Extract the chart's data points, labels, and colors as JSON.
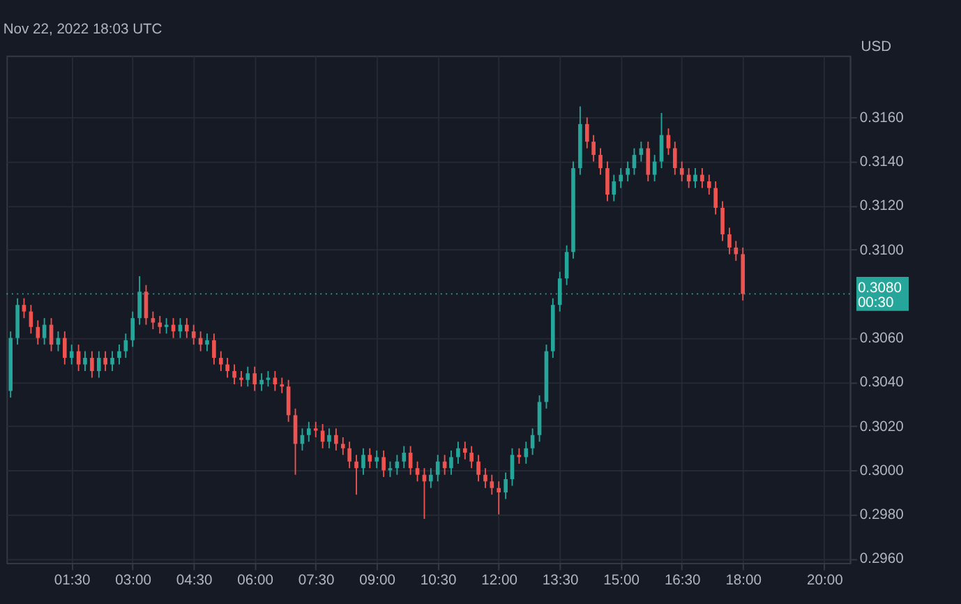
{
  "chart_data": {
    "type": "candlestick",
    "title": "Nov 22, 2022 18:03 UTC",
    "ylabel": "USD",
    "annotations": [
      "00:30"
    ],
    "colors": [
      "#26a69a",
      "#26a69a",
      "#ef5350",
      "#ef5350",
      "#ef5350",
      "#26a69a",
      "#ef5350",
      "#26a69a",
      "#ef5350",
      "#26a69a",
      "#ef5350",
      "#26a69a",
      "#ef5350",
      "#26a69a",
      "#ef5350",
      "#26a69a",
      "#26a69a",
      "#26a69a",
      "#26a69a",
      "#26a69a",
      "#ef5350",
      "#ef5350",
      "#ef5350",
      "#26a69a",
      "#ef5350",
      "#26a69a",
      "#ef5350",
      "#ef5350",
      "#ef5350",
      "#26a69a",
      "#ef5350",
      "#ef5350",
      "#ef5350",
      "#ef5350",
      "#ef5350",
      "#26a69a",
      "#ef5350",
      "#26a69a",
      "#26a69a",
      "#ef5350",
      "#ef5350",
      "#ef5350",
      "#ef5350",
      "#26a69a",
      "#26a69a",
      "#ef5350",
      "#ef5350",
      "#26a69a",
      "#ef5350",
      "#ef5350",
      "#ef5350",
      "#ef5350",
      "#26a69a",
      "#ef5350",
      "#26a69a",
      "#ef5350",
      "#26a69a",
      "#26a69a",
      "#26a69a",
      "#ef5350",
      "#ef5350",
      "#ef5350",
      "#26a69a",
      "#26a69a",
      "#ef5350",
      "#26a69a",
      "#26a69a",
      "#ef5350",
      "#ef5350",
      "#ef5350",
      "#ef5350",
      "#ef5350",
      "#ef5350",
      "#26a69a",
      "#26a69a",
      "#ef5350",
      "#26a69a",
      "#26a69a",
      "#26a69a",
      "#26a69a",
      "#26a69a",
      "#26a69a",
      "#26a69a",
      "#26a69a",
      "#26a69a",
      "#ef5350",
      "#ef5350",
      "#ef5350",
      "#ef5350",
      "#26a69a",
      "#26a69a",
      "#26a69a",
      "#26a69a",
      "#26a69a",
      "#ef5350",
      "#26a69a",
      "#26a69a",
      "#ef5350",
      "#ef5350",
      "#ef5350",
      "#ef5350",
      "#26a69a",
      "#ef5350",
      "#ef5350",
      "#ef5350",
      "#ef5350",
      "#ef5350",
      "#ef5350",
      "#ef5350"
    ],
    "x": [
      0,
      0.17,
      0.33,
      0.5,
      0.67,
      0.83,
      1,
      1.17,
      1.33,
      1.5,
      1.67,
      1.83,
      2,
      2.17,
      2.33,
      2.5,
      2.67,
      2.83,
      3,
      3.17,
      3.33,
      3.5,
      3.67,
      3.83,
      4,
      4.17,
      4.33,
      4.5,
      4.67,
      4.83,
      5,
      5.17,
      5.33,
      5.5,
      5.67,
      5.83,
      6,
      6.17,
      6.33,
      6.5,
      6.67,
      6.83,
      7,
      7.17,
      7.33,
      7.5,
      7.67,
      7.83,
      8,
      8.17,
      8.33,
      8.5,
      8.67,
      8.83,
      9,
      9.17,
      9.33,
      9.5,
      9.67,
      9.83,
      10,
      10.17,
      10.33,
      10.5,
      10.67,
      10.83,
      11,
      11.17,
      11.33,
      11.5,
      11.67,
      11.83,
      12,
      12.17,
      12.33,
      12.5,
      12.67,
      12.83,
      13,
      13.17,
      13.33,
      13.5,
      13.67,
      13.83,
      14,
      14.17,
      14.33,
      14.5,
      14.67,
      14.83,
      15,
      15.17,
      15.33,
      15.5,
      15.67,
      15.83,
      16,
      16.17,
      16.33,
      16.5,
      16.67,
      16.83,
      17,
      17.17,
      17.33,
      17.5,
      17.67,
      17.83,
      18
    ],
    "ohlc": [
      [
        0.3036,
        0.3063,
        0.3033,
        0.306
      ],
      [
        0.306,
        0.3078,
        0.3057,
        0.3075
      ],
      [
        0.3075,
        0.3078,
        0.3069,
        0.3072
      ],
      [
        0.3072,
        0.3075,
        0.3062,
        0.3065
      ],
      [
        0.3065,
        0.3068,
        0.3057,
        0.306
      ],
      [
        0.306,
        0.3069,
        0.3057,
        0.3066
      ],
      [
        0.3066,
        0.3069,
        0.3054,
        0.3057
      ],
      [
        0.3057,
        0.3063,
        0.3054,
        0.306
      ],
      [
        0.306,
        0.3063,
        0.3048,
        0.3051
      ],
      [
        0.3051,
        0.3057,
        0.3048,
        0.3054
      ],
      [
        0.3054,
        0.3057,
        0.3045,
        0.3048
      ],
      [
        0.3048,
        0.3054,
        0.3045,
        0.3051
      ],
      [
        0.3051,
        0.3054,
        0.3042,
        0.3045
      ],
      [
        0.3045,
        0.3054,
        0.3042,
        0.3051
      ],
      [
        0.3051,
        0.3054,
        0.3045,
        0.3048
      ],
      [
        0.3048,
        0.3054,
        0.3045,
        0.3051
      ],
      [
        0.3051,
        0.3057,
        0.3048,
        0.3054
      ],
      [
        0.3054,
        0.3062,
        0.3051,
        0.3059
      ],
      [
        0.3059,
        0.3072,
        0.3056,
        0.3069
      ],
      [
        0.3069,
        0.3088,
        0.3066,
        0.3081
      ],
      [
        0.3081,
        0.3084,
        0.3066,
        0.3069
      ],
      [
        0.3069,
        0.3072,
        0.3064,
        0.3067
      ],
      [
        0.3067,
        0.307,
        0.3062,
        0.3065
      ],
      [
        0.3065,
        0.3069,
        0.3062,
        0.3066
      ],
      [
        0.3066,
        0.3069,
        0.306,
        0.3063
      ],
      [
        0.3063,
        0.3069,
        0.306,
        0.3066
      ],
      [
        0.3066,
        0.3069,
        0.306,
        0.3063
      ],
      [
        0.3063,
        0.3066,
        0.3057,
        0.306
      ],
      [
        0.306,
        0.3063,
        0.3054,
        0.3057
      ],
      [
        0.3057,
        0.3062,
        0.3054,
        0.3059
      ],
      [
        0.3059,
        0.3062,
        0.3048,
        0.3051
      ],
      [
        0.3051,
        0.3054,
        0.3045,
        0.3048
      ],
      [
        0.3048,
        0.3051,
        0.3042,
        0.3045
      ],
      [
        0.3045,
        0.3048,
        0.3039,
        0.3042
      ],
      [
        0.3042,
        0.3045,
        0.3038,
        0.3041
      ],
      [
        0.3041,
        0.3047,
        0.3038,
        0.3044
      ],
      [
        0.3044,
        0.3047,
        0.3036,
        0.3039
      ],
      [
        0.3039,
        0.3044,
        0.3036,
        0.3041
      ],
      [
        0.3041,
        0.3045,
        0.3038,
        0.3042
      ],
      [
        0.3042,
        0.3045,
        0.3036,
        0.3039
      ],
      [
        0.3039,
        0.3042,
        0.3035,
        0.3038
      ],
      [
        0.3038,
        0.3041,
        0.3022,
        0.3025
      ],
      [
        0.3025,
        0.3028,
        0.2998,
        0.3012
      ],
      [
        0.3012,
        0.3019,
        0.3009,
        0.3016
      ],
      [
        0.3016,
        0.3022,
        0.3013,
        0.3019
      ],
      [
        0.3019,
        0.3022,
        0.3015,
        0.3018
      ],
      [
        0.3018,
        0.3021,
        0.301,
        0.3013
      ],
      [
        0.3013,
        0.3019,
        0.301,
        0.3016
      ],
      [
        0.3016,
        0.3019,
        0.3009,
        0.3012
      ],
      [
        0.3012,
        0.3015,
        0.3007,
        0.301
      ],
      [
        0.301,
        0.3013,
        0.3001,
        0.3004
      ],
      [
        0.3004,
        0.3007,
        0.2989,
        0.3001
      ],
      [
        0.3001,
        0.301,
        0.2998,
        0.3007
      ],
      [
        0.3007,
        0.301,
        0.3001,
        0.3004
      ],
      [
        0.3004,
        0.3009,
        0.3001,
        0.3006
      ],
      [
        0.3006,
        0.3009,
        0.2997,
        0.3
      ],
      [
        0.3,
        0.3004,
        0.2997,
        0.3001
      ],
      [
        0.3001,
        0.3007,
        0.2998,
        0.3004
      ],
      [
        0.3004,
        0.3011,
        0.3001,
        0.3008
      ],
      [
        0.3008,
        0.3011,
        0.2998,
        0.3001
      ],
      [
        0.3001,
        0.3004,
        0.2995,
        0.2998
      ],
      [
        0.2998,
        0.3001,
        0.2978,
        0.2995
      ],
      [
        0.2995,
        0.3001,
        0.2992,
        0.2998
      ],
      [
        0.2998,
        0.3007,
        0.2995,
        0.3004
      ],
      [
        0.3004,
        0.3007,
        0.2998,
        0.3001
      ],
      [
        0.3001,
        0.3009,
        0.2998,
        0.3006
      ],
      [
        0.3006,
        0.3013,
        0.3003,
        0.301
      ],
      [
        0.301,
        0.3013,
        0.3005,
        0.3008
      ],
      [
        0.3008,
        0.3011,
        0.3001,
        0.3004
      ],
      [
        0.3004,
        0.3007,
        0.2995,
        0.2998
      ],
      [
        0.2998,
        0.3001,
        0.2992,
        0.2995
      ],
      [
        0.2995,
        0.2998,
        0.2989,
        0.2992
      ],
      [
        0.2992,
        0.2995,
        0.298,
        0.299
      ],
      [
        0.299,
        0.2999,
        0.2987,
        0.2996
      ],
      [
        0.2996,
        0.301,
        0.2993,
        0.3007
      ],
      [
        0.3007,
        0.301,
        0.3003,
        0.3006
      ],
      [
        0.3006,
        0.3013,
        0.3003,
        0.301
      ],
      [
        0.301,
        0.3019,
        0.3007,
        0.3016
      ],
      [
        0.3016,
        0.3034,
        0.3013,
        0.3031
      ],
      [
        0.3031,
        0.3057,
        0.3028,
        0.3054
      ],
      [
        0.3054,
        0.3078,
        0.3051,
        0.3075
      ],
      [
        0.3075,
        0.309,
        0.3072,
        0.3087
      ],
      [
        0.3087,
        0.3102,
        0.3084,
        0.3099
      ],
      [
        0.3099,
        0.314,
        0.3096,
        0.3137
      ],
      [
        0.3137,
        0.3165,
        0.3134,
        0.3157
      ],
      [
        0.3157,
        0.316,
        0.3146,
        0.3149
      ],
      [
        0.3149,
        0.3152,
        0.314,
        0.3143
      ],
      [
        0.3143,
        0.3146,
        0.3134,
        0.3137
      ],
      [
        0.3137,
        0.314,
        0.3122,
        0.3125
      ],
      [
        0.3125,
        0.3134,
        0.3122,
        0.3131
      ],
      [
        0.3131,
        0.3137,
        0.3128,
        0.3134
      ],
      [
        0.3134,
        0.314,
        0.3131,
        0.3137
      ],
      [
        0.3137,
        0.3146,
        0.3134,
        0.3143
      ],
      [
        0.3143,
        0.3149,
        0.314,
        0.3146
      ],
      [
        0.3146,
        0.3149,
        0.3131,
        0.3134
      ],
      [
        0.3134,
        0.3143,
        0.3131,
        0.314
      ],
      [
        0.314,
        0.3162,
        0.3137,
        0.3152
      ],
      [
        0.3152,
        0.3155,
        0.3143,
        0.3146
      ],
      [
        0.3146,
        0.3149,
        0.3134,
        0.3137
      ],
      [
        0.3137,
        0.314,
        0.3131,
        0.3134
      ],
      [
        0.3134,
        0.3137,
        0.3128,
        0.3131
      ],
      [
        0.3131,
        0.3137,
        0.3128,
        0.3134
      ],
      [
        0.3134,
        0.3137,
        0.3128,
        0.3131
      ],
      [
        0.3131,
        0.3134,
        0.3125,
        0.3128
      ],
      [
        0.3128,
        0.3131,
        0.3116,
        0.3119
      ],
      [
        0.3119,
        0.3122,
        0.3104,
        0.3107
      ],
      [
        0.3107,
        0.311,
        0.3098,
        0.3101
      ],
      [
        0.3101,
        0.3104,
        0.3095,
        0.3098
      ],
      [
        0.3098,
        0.3101,
        0.3077,
        0.308
      ]
    ],
    "xlim": [
      -0.1,
      20.63
    ],
    "xticks": [
      {
        "value": 1.5,
        "label": "01:30"
      },
      {
        "value": 3,
        "label": "03:00"
      },
      {
        "value": 4.5,
        "label": "04:30"
      },
      {
        "value": 6,
        "label": "06:00"
      },
      {
        "value": 7.5,
        "label": "07:30"
      },
      {
        "value": 9,
        "label": "09:00"
      },
      {
        "value": 10.5,
        "label": "10:30"
      },
      {
        "value": 12,
        "label": "12:00"
      },
      {
        "value": 13.5,
        "label": "13:30"
      },
      {
        "value": 15,
        "label": "15:00"
      },
      {
        "value": 16.5,
        "label": "16:30"
      },
      {
        "value": 18,
        "label": "18:00"
      },
      {
        "value": 20,
        "label": "20:00"
      }
    ],
    "ylim": [
      0.2958,
      0.3188
    ],
    "yticks": [
      {
        "value": 0.296,
        "label": "0.2960"
      },
      {
        "value": 0.298,
        "label": "0.2980"
      },
      {
        "value": 0.3,
        "label": "0.3000"
      },
      {
        "value": 0.302,
        "label": "0.3020"
      },
      {
        "value": 0.304,
        "label": "0.3040"
      },
      {
        "value": 0.306,
        "label": "0.3060"
      },
      {
        "value": 0.31,
        "label": "0.3100"
      },
      {
        "value": 0.312,
        "label": "0.3120"
      },
      {
        "value": 0.314,
        "label": "0.3140"
      },
      {
        "value": 0.316,
        "label": "0.3160"
      }
    ],
    "ref_lines": [
      {
        "axis": "y",
        "value": 0.308,
        "label": "0.3080",
        "color": "#26a69a",
        "line_style": "dotted"
      }
    ],
    "grid": true
  }
}
